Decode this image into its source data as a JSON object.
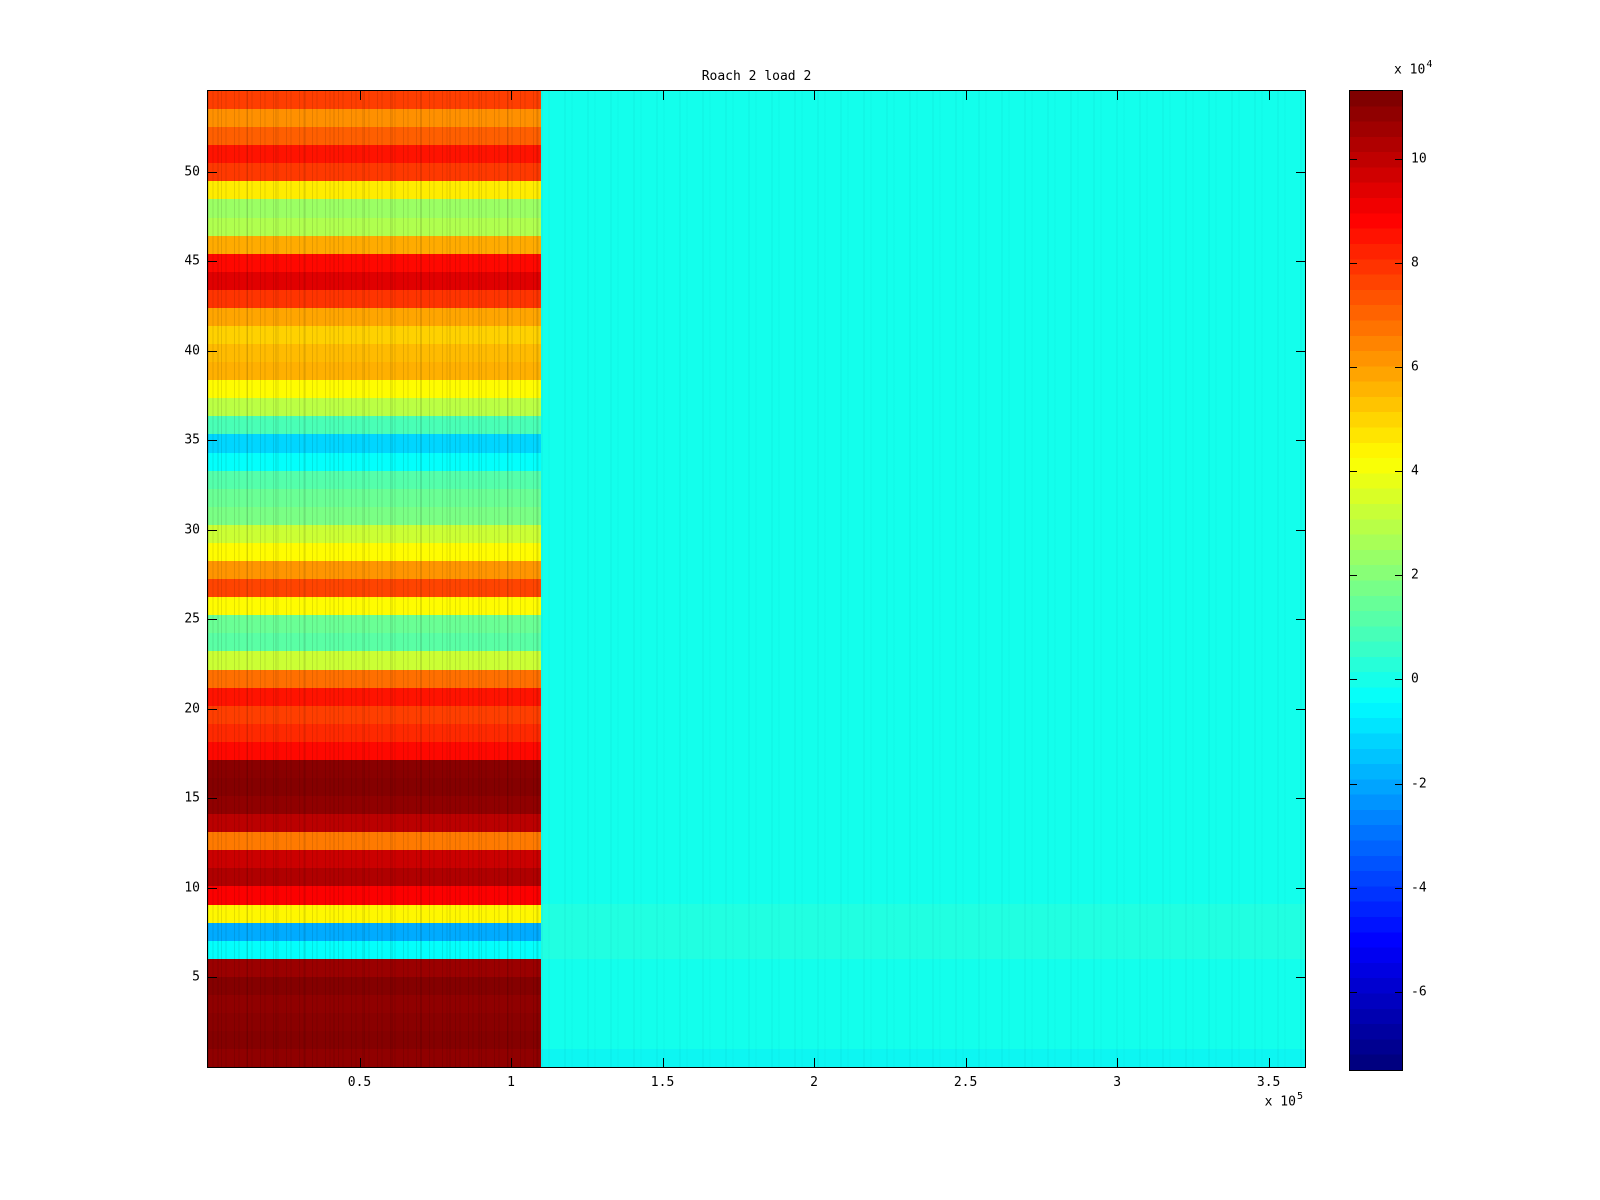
{
  "figure": {
    "background": "#ffffff",
    "title": "Roach 2 load 2"
  },
  "axes": {
    "x": {
      "max": 362000,
      "ticks": [
        {
          "label": "0.5",
          "value": 50000
        },
        {
          "label": "1",
          "value": 100000
        },
        {
          "label": "1.5",
          "value": 150000
        },
        {
          "label": "2",
          "value": 200000
        },
        {
          "label": "2.5",
          "value": 250000
        },
        {
          "label": "3",
          "value": 300000
        },
        {
          "label": "3.5",
          "value": 350000
        }
      ],
      "exponent_label": "x 10",
      "exponent_power": "5"
    },
    "y": {
      "max": 54.5,
      "ticks": [
        {
          "label": "5",
          "value": 5
        },
        {
          "label": "10",
          "value": 10
        },
        {
          "label": "15",
          "value": 15
        },
        {
          "label": "20",
          "value": 20
        },
        {
          "label": "25",
          "value": 25
        },
        {
          "label": "30",
          "value": 30
        },
        {
          "label": "35",
          "value": 35
        },
        {
          "label": "40",
          "value": 40
        },
        {
          "label": "45",
          "value": 45
        },
        {
          "label": "50",
          "value": 50
        }
      ]
    }
  },
  "colorbar": {
    "vmin": -75000,
    "vmax": 113000,
    "ticks": [
      {
        "label": "10",
        "value": 100000
      },
      {
        "label": "8",
        "value": 80000
      },
      {
        "label": "6",
        "value": 60000
      },
      {
        "label": "4",
        "value": 40000
      },
      {
        "label": "2",
        "value": 20000
      },
      {
        "label": "0",
        "value": 0
      },
      {
        "label": "-2",
        "value": -20000
      },
      {
        "label": "-4",
        "value": -40000
      },
      {
        "label": "-6",
        "value": -60000
      }
    ],
    "exponent_label": "x 10",
    "exponent_power": "4"
  },
  "chart_data": {
    "type": "heatmap",
    "title": "Roach 2 load 2",
    "colormap": "jet",
    "caxis": [
      -75000,
      113000
    ],
    "x_range": [
      0,
      362000
    ],
    "n_rows": 54,
    "xlabel": "",
    "ylabel": "",
    "legend": "colorbar-right",
    "grid": false,
    "left_block": {
      "x_start": 0,
      "x_end": 110000,
      "row_values_bottom_to_top": [
        110000,
        112000,
        111000,
        110000,
        112000,
        108000,
        -4000,
        -20000,
        44000,
        90000,
        104000,
        99000,
        67000,
        102000,
        110000,
        112000,
        111000,
        88000,
        82000,
        78000,
        86000,
        69000,
        33000,
        12000,
        15000,
        43000,
        77000,
        62000,
        43000,
        33000,
        18000,
        15000,
        11000,
        -4000,
        -12000,
        9000,
        30000,
        43000,
        57000,
        55000,
        51000,
        59000,
        80000,
        95000,
        88000,
        58000,
        28000,
        24000,
        46000,
        79000,
        86000,
        72000,
        63000,
        78000
      ]
    },
    "right_block": {
      "x_start": 110000,
      "x_end": 362000,
      "value": -1000,
      "bands": [
        {
          "from_row": 7,
          "to_row": 9,
          "color": "rgba(110,255,170,0.16)"
        },
        {
          "from_row": 1,
          "to_row": 1,
          "color": "rgba(0,225,255,0.30)"
        }
      ]
    }
  }
}
